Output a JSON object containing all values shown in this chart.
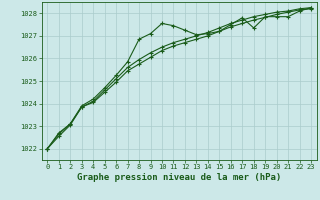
{
  "background_color": "#cce8e8",
  "grid_color": "#aacccc",
  "line_color": "#1a5c1a",
  "xlabel": "Graphe pression niveau de la mer (hPa)",
  "xlabel_fontsize": 6.5,
  "ylim": [
    1021.5,
    1028.5
  ],
  "xlim": [
    -0.5,
    23.5
  ],
  "yticks": [
    1022,
    1023,
    1024,
    1025,
    1026,
    1027,
    1028
  ],
  "xticks": [
    0,
    1,
    2,
    3,
    4,
    5,
    6,
    7,
    8,
    9,
    10,
    11,
    12,
    13,
    14,
    15,
    16,
    17,
    18,
    19,
    20,
    21,
    22,
    23
  ],
  "series1": [
    1022.0,
    1022.7,
    1023.1,
    1023.9,
    1024.2,
    1024.7,
    1025.25,
    1025.85,
    1026.85,
    1027.1,
    1027.55,
    1027.45,
    1027.25,
    1027.05,
    1027.1,
    1027.2,
    1027.5,
    1027.8,
    1027.35,
    1027.85,
    1027.85,
    1027.85,
    1028.1,
    1028.25
  ],
  "series2": [
    1022.0,
    1022.65,
    1023.1,
    1023.85,
    1024.1,
    1024.6,
    1025.1,
    1025.6,
    1025.95,
    1026.25,
    1026.5,
    1026.7,
    1026.85,
    1027.0,
    1027.15,
    1027.35,
    1027.55,
    1027.7,
    1027.85,
    1027.95,
    1028.05,
    1028.1,
    1028.2,
    1028.25
  ],
  "series3": [
    1022.0,
    1022.55,
    1023.05,
    1023.85,
    1024.05,
    1024.5,
    1024.95,
    1025.45,
    1025.75,
    1026.05,
    1026.35,
    1026.55,
    1026.7,
    1026.85,
    1027.0,
    1027.2,
    1027.4,
    1027.55,
    1027.7,
    1027.82,
    1027.95,
    1028.05,
    1028.15,
    1028.2
  ]
}
